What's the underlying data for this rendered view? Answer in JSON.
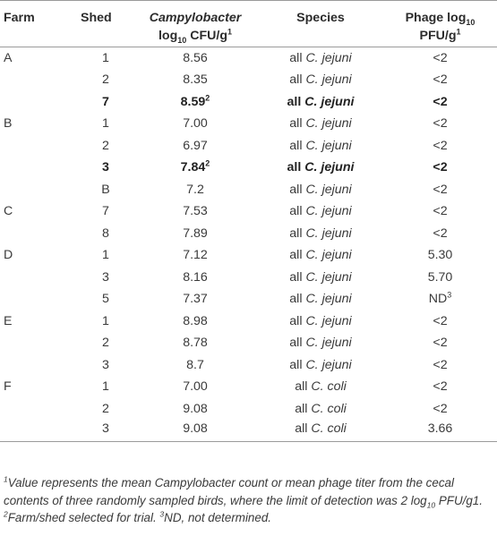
{
  "header": {
    "farm": "Farm",
    "shed": "Shed",
    "count_italic": "Campylobacter",
    "count_log": "log",
    "count_sub": "10",
    "count_unit": " CFU/g",
    "count_sup": "1",
    "species": "Species",
    "phage_line1": "Phage log",
    "phage_sub": "10",
    "phage_line2": "PFU/g",
    "phage_sup": "1"
  },
  "rows": [
    {
      "farm": "A",
      "shed": "1",
      "count": "8.56",
      "count_sup": "",
      "species_prefix": "all ",
      "species": "C. jejuni",
      "phage": "<2",
      "phage_sup": "",
      "bold": false
    },
    {
      "farm": "",
      "shed": "2",
      "count": "8.35",
      "count_sup": "",
      "species_prefix": "all ",
      "species": "C. jejuni",
      "phage": "<2",
      "phage_sup": "",
      "bold": false
    },
    {
      "farm": "",
      "shed": "7",
      "count": "8.59",
      "count_sup": "2",
      "species_prefix": "all ",
      "species": "C. jejuni",
      "phage": "<2",
      "phage_sup": "",
      "bold": true
    },
    {
      "farm": "B",
      "shed": "1",
      "count": "7.00",
      "count_sup": "",
      "species_prefix": "all ",
      "species": "C. jejuni",
      "phage": "<2",
      "phage_sup": "",
      "bold": false
    },
    {
      "farm": "",
      "shed": "2",
      "count": "6.97",
      "count_sup": "",
      "species_prefix": "all ",
      "species": "C. jejuni",
      "phage": "<2",
      "phage_sup": "",
      "bold": false
    },
    {
      "farm": "",
      "shed": "3",
      "count": "7.84",
      "count_sup": "2",
      "species_prefix": "all ",
      "species": "C. jejuni",
      "phage": "<2",
      "phage_sup": "",
      "bold": true
    },
    {
      "farm": "",
      "shed": "B",
      "count": "7.2",
      "count_sup": "",
      "species_prefix": "all ",
      "species": "C. jejuni",
      "phage": "<2",
      "phage_sup": "",
      "bold": false
    },
    {
      "farm": "C",
      "shed": "7",
      "count": "7.53",
      "count_sup": "",
      "species_prefix": "all ",
      "species": "C. jejuni",
      "phage": "<2",
      "phage_sup": "",
      "bold": false
    },
    {
      "farm": "",
      "shed": "8",
      "count": "7.89",
      "count_sup": "",
      "species_prefix": "all ",
      "species": "C. jejuni",
      "phage": "<2",
      "phage_sup": "",
      "bold": false
    },
    {
      "farm": "D",
      "shed": "1",
      "count": "7.12",
      "count_sup": "",
      "species_prefix": "all ",
      "species": "C. jejuni",
      "phage": "5.30",
      "phage_sup": "",
      "bold": false
    },
    {
      "farm": "",
      "shed": "3",
      "count": "8.16",
      "count_sup": "",
      "species_prefix": "all ",
      "species": "C. jejuni",
      "phage": "5.70",
      "phage_sup": "",
      "bold": false
    },
    {
      "farm": "",
      "shed": "5",
      "count": "7.37",
      "count_sup": "",
      "species_prefix": "all ",
      "species": "C. jejuni",
      "phage": "ND",
      "phage_sup": "3",
      "bold": false
    },
    {
      "farm": "E",
      "shed": "1",
      "count": "8.98",
      "count_sup": "",
      "species_prefix": "all ",
      "species": "C. jejuni",
      "phage": "<2",
      "phage_sup": "",
      "bold": false
    },
    {
      "farm": "",
      "shed": "2",
      "count": "8.78",
      "count_sup": "",
      "species_prefix": "all ",
      "species": "C. jejuni",
      "phage": "<2",
      "phage_sup": "",
      "bold": false
    },
    {
      "farm": "",
      "shed": "3",
      "count": "8.7",
      "count_sup": "",
      "species_prefix": "all ",
      "species": "C. jejuni",
      "phage": "<2",
      "phage_sup": "",
      "bold": false
    },
    {
      "farm": "F",
      "shed": "1",
      "count": "7.00",
      "count_sup": "",
      "species_prefix": "all ",
      "species": "C. coli",
      "phage": "<2",
      "phage_sup": "",
      "bold": false
    },
    {
      "farm": "",
      "shed": "2",
      "count": "9.08",
      "count_sup": "",
      "species_prefix": "all ",
      "species": "C. coli",
      "phage": "<2",
      "phage_sup": "",
      "bold": false
    },
    {
      "farm": "",
      "shed": "3",
      "count": "9.08",
      "count_sup": "",
      "species_prefix": "all ",
      "species": "C. coli",
      "phage": "3.66",
      "phage_sup": "",
      "bold": false
    }
  ],
  "footnote": {
    "n1_sup": "1",
    "n1_text_a": "Value represents the mean Campylobacter count or mean phage titer from the cecal contents of three randomly sampled birds, where the limit of detection was 2 log",
    "n1_sub": "10",
    "n1_text_b": " PFU/g1. ",
    "n2_sup": "2",
    "n2_text": "Farm/shed selected for trial. ",
    "n3_sup": "3",
    "n3_text": "ND, not determined."
  }
}
